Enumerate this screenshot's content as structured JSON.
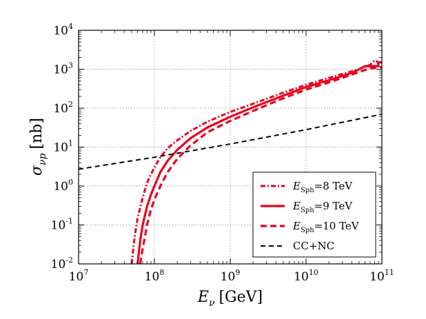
{
  "chart_data": {
    "type": "line",
    "xscale": "log",
    "yscale": "log",
    "xlim": [
      10000000.0,
      100000000000.0
    ],
    "ylim": [
      0.01,
      10000.0
    ],
    "grid": true,
    "xlabel": {
      "symbol": "E",
      "sub": "ν",
      "unit": "[GeV]"
    },
    "ylabel": {
      "symbol": "σ",
      "sub": "νp",
      "unit": "[nb]"
    },
    "x_ticks": [
      {
        "base": "10",
        "exp": "7"
      },
      {
        "base": "10",
        "exp": "8"
      },
      {
        "base": "10",
        "exp": "9"
      },
      {
        "base": "10",
        "exp": "10"
      },
      {
        "base": "10",
        "exp": "11"
      }
    ],
    "y_ticks": [
      {
        "base": "10",
        "exp": "-2"
      },
      {
        "base": "10",
        "exp": "-1"
      },
      {
        "base": "10",
        "exp": "0"
      },
      {
        "base": "10",
        "exp": "1"
      },
      {
        "base": "10",
        "exp": "2"
      },
      {
        "base": "10",
        "exp": "3"
      },
      {
        "base": "10",
        "exp": "4"
      }
    ],
    "legend_position": "lower-right",
    "series": [
      {
        "name": "E_Sph = 8 TeV",
        "label_symbol": "E",
        "label_sub": "Sph",
        "label_rest": "=8 TeV",
        "color": "#e8001c",
        "style": "dashdot",
        "points": [
          [
            50000000.0,
            0.01
          ],
          [
            55000000.0,
            0.05
          ],
          [
            60000000.0,
            0.15
          ],
          [
            70000000.0,
            0.5
          ],
          [
            80000000.0,
            1.2
          ],
          [
            90000000.0,
            2.0
          ],
          [
            100000000.0,
            3.0
          ],
          [
            120000000.0,
            5.5
          ],
          [
            150000000.0,
            9.5
          ],
          [
            200000000.0,
            15
          ],
          [
            300000000.0,
            26
          ],
          [
            500000000.0,
            45
          ],
          [
            1000000000.0,
            80
          ],
          [
            2000000000.0,
            130
          ],
          [
            5000000000.0,
            250
          ],
          [
            10000000000.0,
            400
          ],
          [
            20000000000.0,
            600
          ],
          [
            50000000000.0,
            1000
          ],
          [
            70000000000.0,
            1300
          ],
          [
            80000000000.0,
            1700
          ],
          [
            90000000000.0,
            1500
          ],
          [
            100000000000.0,
            1600
          ]
        ]
      },
      {
        "name": "E_Sph = 9 TeV",
        "label_symbol": "E",
        "label_sub": "Sph",
        "label_rest": "=9 TeV",
        "color": "#e8001c",
        "style": "solid",
        "points": [
          [
            60000000.0,
            0.01
          ],
          [
            65000000.0,
            0.04
          ],
          [
            70000000.0,
            0.1
          ],
          [
            80000000.0,
            0.3
          ],
          [
            90000000.0,
            0.6
          ],
          [
            100000000.0,
            1.0
          ],
          [
            120000000.0,
            2.3
          ],
          [
            150000000.0,
            4.5
          ],
          [
            200000000.0,
            8.5
          ],
          [
            300000000.0,
            17
          ],
          [
            500000000.0,
            32
          ],
          [
            1000000000.0,
            60
          ],
          [
            2000000000.0,
            105
          ],
          [
            5000000000.0,
            210
          ],
          [
            10000000000.0,
            350
          ],
          [
            20000000000.0,
            520
          ],
          [
            40000000000.0,
            800
          ],
          [
            50000000000.0,
            1000
          ],
          [
            60000000000.0,
            1200
          ],
          [
            90000000000.0,
            1200
          ],
          [
            90000000000.0,
            1500
          ],
          [
            100000000000.0,
            1500
          ]
        ]
      },
      {
        "name": "E_Sph = 10 TeV",
        "label_symbol": "E",
        "label_sub": "Sph",
        "label_rest": "=10 TeV",
        "color": "#e8001c",
        "style": "dashed",
        "points": [
          [
            65000000.0,
            0.01
          ],
          [
            70000000.0,
            0.025
          ],
          [
            75000000.0,
            0.05
          ],
          [
            80000000.0,
            0.1
          ],
          [
            90000000.0,
            0.25
          ],
          [
            100000000.0,
            0.45
          ],
          [
            120000000.0,
            1.0
          ],
          [
            150000000.0,
            2.3
          ],
          [
            200000000.0,
            5.0
          ],
          [
            300000000.0,
            11
          ],
          [
            500000000.0,
            24
          ],
          [
            1000000000.0,
            47
          ],
          [
            2000000000.0,
            85
          ],
          [
            5000000000.0,
            180
          ],
          [
            10000000000.0,
            300
          ],
          [
            20000000000.0,
            460
          ],
          [
            30000000000.0,
            600
          ],
          [
            50000000000.0,
            850
          ],
          [
            70000000000.0,
            1050
          ],
          [
            90000000000.0,
            1100
          ],
          [
            100000000000.0,
            1150
          ]
        ]
      },
      {
        "name": "CC+NC",
        "label_symbol": "",
        "label_sub": "",
        "label_rest": "CC+NC",
        "color": "#000000",
        "style": "dashed",
        "points": [
          [
            10000000.0,
            2.7
          ],
          [
            100000000.0,
            5.5
          ],
          [
            1000000000.0,
            12
          ],
          [
            10000000000.0,
            28
          ],
          [
            100000000000.0,
            70
          ]
        ]
      }
    ]
  }
}
